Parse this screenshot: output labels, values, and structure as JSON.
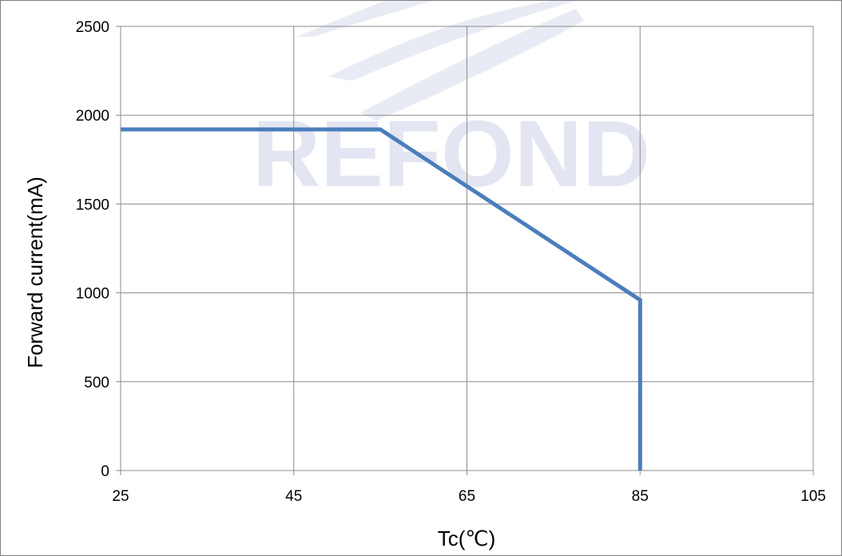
{
  "chart_data": {
    "type": "line",
    "title": "",
    "xlabel": "Tc(℃)",
    "ylabel": "Forward current(mA)",
    "xlim": [
      25,
      105
    ],
    "ylim": [
      0,
      2500
    ],
    "xticks": [
      25,
      45,
      65,
      85,
      105
    ],
    "yticks": [
      0,
      500,
      1000,
      1500,
      2000,
      2500
    ],
    "grid": true,
    "legend": "none",
    "series": [
      {
        "x": [
          25,
          55,
          85,
          85
        ],
        "y": [
          1920,
          1920,
          960,
          0
        ],
        "color": "#4a7ebb"
      }
    ],
    "watermark": "REFOND",
    "colors": {
      "grid": "#8c8c8c",
      "axis": "#8c8c8c",
      "watermark": "#e3e6f2"
    }
  }
}
